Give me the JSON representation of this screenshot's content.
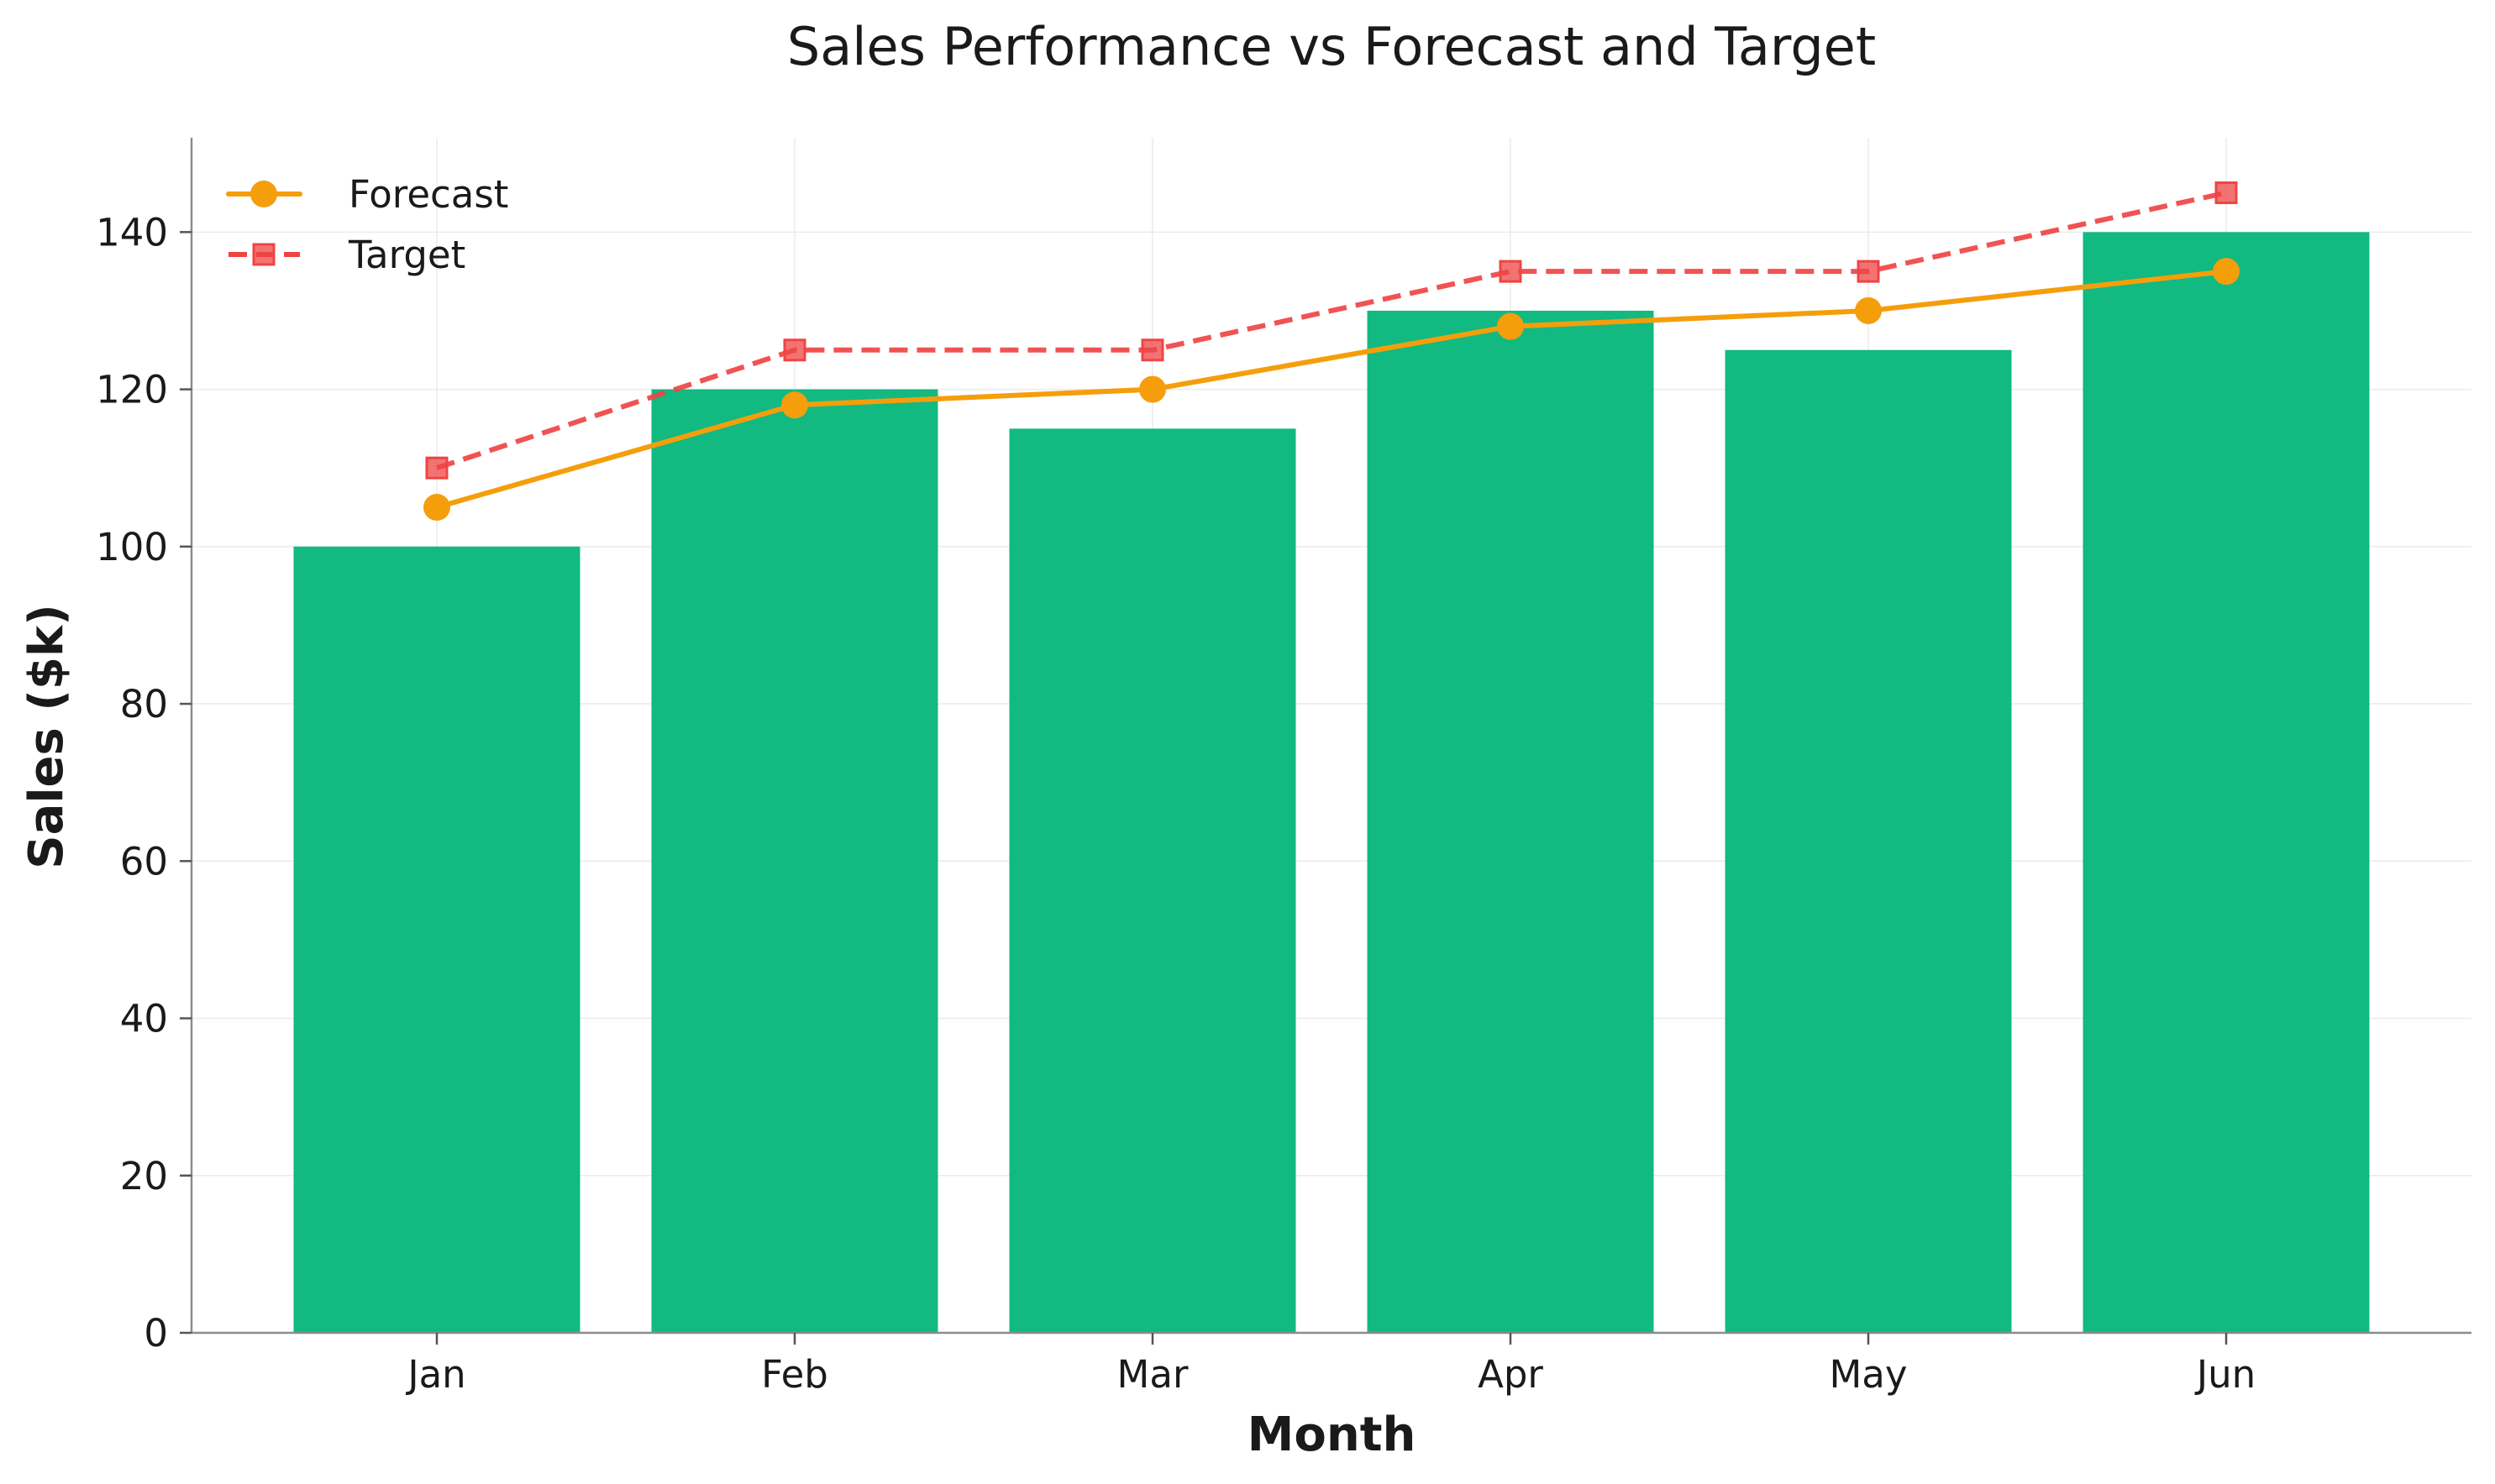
{
  "chart_data": {
    "type": "bar",
    "title": "Sales Performance vs Forecast and Target",
    "xlabel": "Month",
    "ylabel": "Sales ($k)",
    "categories": [
      "Jan",
      "Feb",
      "Mar",
      "Apr",
      "May",
      "Jun"
    ],
    "ylim": [
      0,
      152
    ],
    "yticks": [
      0,
      20,
      40,
      60,
      80,
      100,
      120,
      140
    ],
    "grid": true,
    "legend_position": "top-left",
    "series": [
      {
        "type": "bar",
        "values": [
          100,
          120,
          115,
          130,
          125,
          140
        ],
        "color": "#12b981"
      },
      {
        "type": "line",
        "name": "Forecast",
        "values": [
          105,
          118,
          120,
          128,
          130,
          135
        ],
        "color": "#f59e0b",
        "marker": "circle",
        "linestyle": "solid"
      },
      {
        "type": "line",
        "name": "Target",
        "values": [
          110,
          125,
          125,
          135,
          135,
          145
        ],
        "color": "#ef4444",
        "marker": "square",
        "linestyle": "dashed"
      }
    ]
  }
}
